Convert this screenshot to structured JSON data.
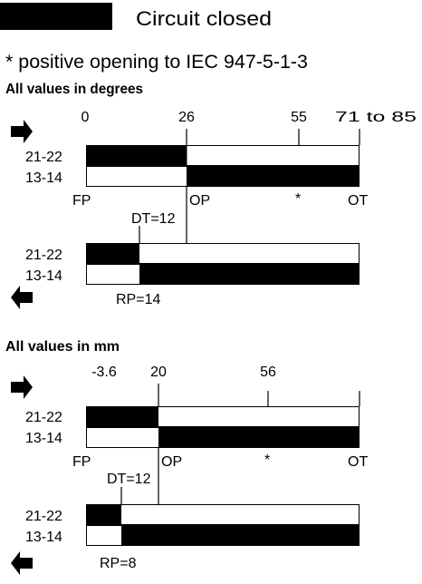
{
  "legend": {
    "label": "Circuit closed",
    "swatch_color": "#000000"
  },
  "note": "* positive opening to IEC 947-5-1-3",
  "sections": [
    {
      "heading": "All values in degrees",
      "forward_arrow_icon": "arrow-right-icon",
      "return_arrow_icon": "arrow-left-icon",
      "ticks": [
        "0",
        "26",
        "55",
        "71 to 85"
      ],
      "contacts": [
        "21-22",
        "13-14"
      ],
      "positions": {
        "start": "FP",
        "op": "OP",
        "star": "*",
        "end": "OT"
      },
      "dt": "DT=12",
      "rp": "RP=14"
    },
    {
      "heading": "All values in mm",
      "forward_arrow_icon": "arrow-right-icon",
      "return_arrow_icon": "arrow-left-icon",
      "ticks": [
        "-3.6",
        "20",
        "56"
      ],
      "contacts": [
        "21-22",
        "13-14"
      ],
      "positions": {
        "start": "FP",
        "op": "OP",
        "star": "*",
        "end": "OT"
      },
      "dt": "DT=12",
      "rp": "RP=8"
    }
  ]
}
